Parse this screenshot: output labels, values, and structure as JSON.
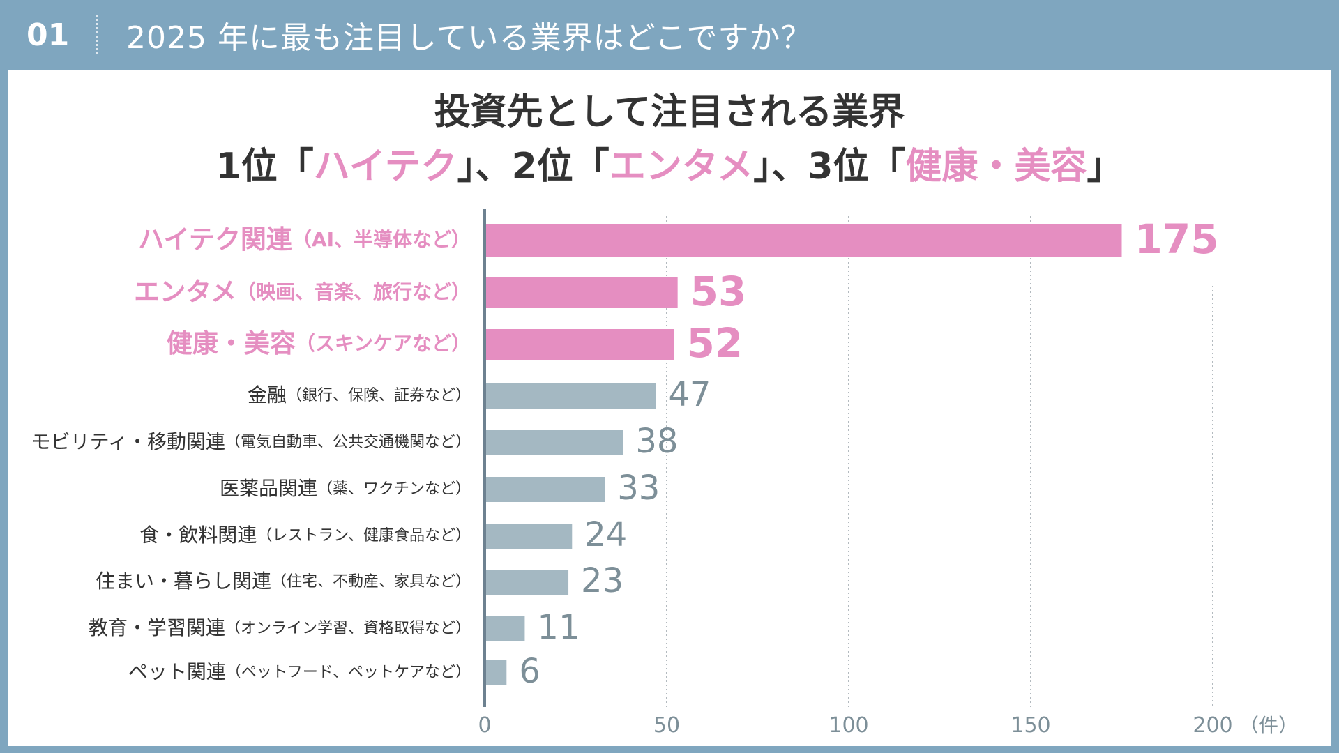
{
  "header": {
    "number": "01",
    "question": "2025 年に最も注目している業界はどこですか？"
  },
  "colors": {
    "frame": "#7fa6bf",
    "highlight": "#e58ec1",
    "normal_bar": "#a4b8c2",
    "normal_value": "#7d8f98",
    "axis": "#6d8190",
    "label": "#333333"
  },
  "chart_data": {
    "type": "bar",
    "orientation": "horizontal",
    "title_line1": "投資先として注目される業界",
    "title_line2": [
      {
        "text": "1位「",
        "highlight": false
      },
      {
        "text": "ハイテク",
        "highlight": true
      },
      {
        "text": "」、2位「",
        "highlight": false
      },
      {
        "text": "エンタメ",
        "highlight": true
      },
      {
        "text": "」、3位「",
        "highlight": false
      },
      {
        "text": "健康・美容",
        "highlight": true
      },
      {
        "text": "」",
        "highlight": false
      }
    ],
    "xlim": [
      0,
      200
    ],
    "x_ticks": [
      0,
      50,
      100,
      150,
      200
    ],
    "x_unit": "（件）",
    "grid": "vertical dotted",
    "categories": [
      {
        "name": "ハイテク関連",
        "detail": "（AI、半導体など）",
        "value": 175,
        "highlight": true
      },
      {
        "name": "エンタメ",
        "detail": "（映画、音楽、旅行など）",
        "value": 53,
        "highlight": true
      },
      {
        "name": "健康・美容",
        "detail": "（スキンケアなど）",
        "value": 52,
        "highlight": true
      },
      {
        "name": "金融",
        "detail": "（銀行、保険、証券など）",
        "value": 47,
        "highlight": false
      },
      {
        "name": "モビリティ・移動関連",
        "detail": "（電気自動車、公共交通機関など）",
        "value": 38,
        "highlight": false
      },
      {
        "name": "医薬品関連",
        "detail": "（薬、ワクチンなど）",
        "value": 33,
        "highlight": false
      },
      {
        "name": "食・飲料関連",
        "detail": "（レストラン、健康食品など）",
        "value": 24,
        "highlight": false
      },
      {
        "name": "住まい・暮らし関連",
        "detail": "（住宅、不動産、家具など）",
        "value": 23,
        "highlight": false
      },
      {
        "name": "教育・学習関連",
        "detail": "（オンライン学習、資格取得など）",
        "value": 11,
        "highlight": false
      },
      {
        "name": "ペット関連",
        "detail": "（ペットフード、ペットケアなど）",
        "value": 6,
        "highlight": false
      }
    ]
  }
}
